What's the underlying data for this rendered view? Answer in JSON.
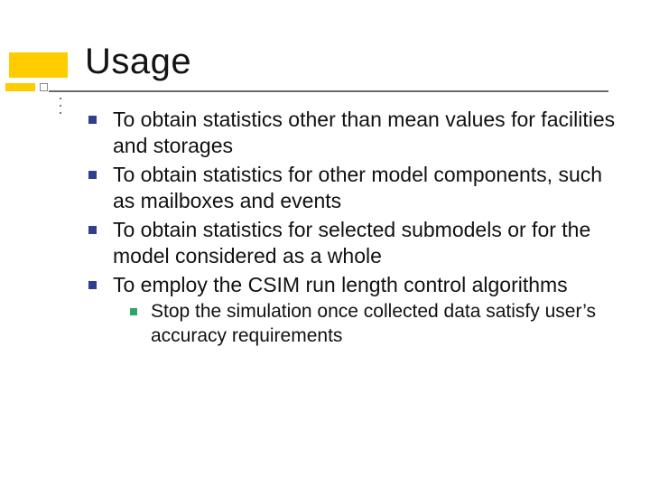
{
  "slide": {
    "title": "Usage",
    "title_color": "#141414",
    "title_fontsize": 40,
    "accent_color": "#ffcc00",
    "underline_color": "#6a6a6a",
    "bullet_color_l0": "#2f3e8f",
    "bullet_color_l1": "#2fa565",
    "text_color": "#111111",
    "body_fontsize_l0": 23,
    "body_fontsize_l1": 21,
    "background_color": "#ffffff",
    "bullets": [
      {
        "level": 0,
        "text": "To obtain statistics other than mean values for facilities and storages"
      },
      {
        "level": 0,
        "text": "To obtain statistics for other model components, such as mailboxes and events"
      },
      {
        "level": 0,
        "text": "To obtain statistics for selected submodels or for the model considered as a whole"
      },
      {
        "level": 0,
        "text": "To employ the CSIM run length control algorithms"
      },
      {
        "level": 1,
        "text": "Stop the simulation once collected data satisfy user’s accuracy requirements"
      }
    ]
  }
}
